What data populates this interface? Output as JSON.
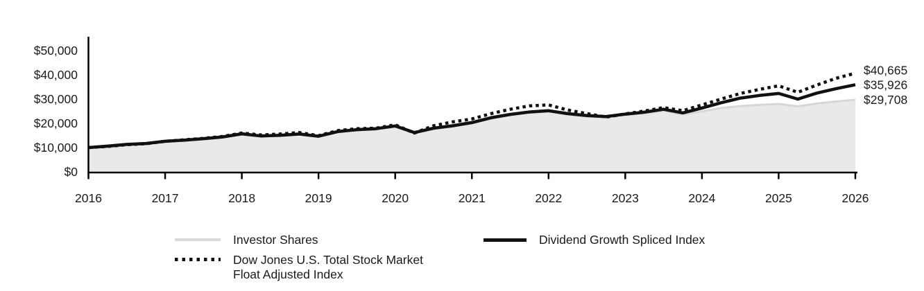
{
  "chart_data": {
    "type": "line",
    "title": "",
    "xlabel": "",
    "ylabel": "",
    "xlim": [
      2016,
      2026
    ],
    "ylim": [
      0,
      50000
    ],
    "grid": false,
    "legend_position": "bottom",
    "x_axis": {
      "tick_labels": [
        "2016",
        "2017",
        "2018",
        "2019",
        "2020",
        "2021",
        "2022",
        "2023",
        "2024",
        "2025",
        "2026"
      ],
      "tick_values": [
        2016,
        2017,
        2018,
        2019,
        2020,
        2021,
        2022,
        2023,
        2024,
        2025,
        2026
      ]
    },
    "y_axis": {
      "tick_labels": [
        "$50,000",
        "$40,000",
        "$30,000",
        "$20,000",
        "$10,000",
        "$0"
      ],
      "tick_values": [
        50000,
        40000,
        30000,
        20000,
        10000,
        0
      ]
    },
    "x": [
      2016,
      2016.25,
      2016.5,
      2016.75,
      2017,
      2017.25,
      2017.5,
      2017.75,
      2018,
      2018.25,
      2018.5,
      2018.75,
      2019,
      2019.25,
      2019.5,
      2019.75,
      2020,
      2020.25,
      2020.5,
      2020.75,
      2021,
      2021.25,
      2021.5,
      2021.75,
      2022,
      2022.25,
      2022.5,
      2022.75,
      2023,
      2023.25,
      2023.5,
      2023.75,
      2024,
      2024.25,
      2024.5,
      2024.75,
      2025,
      2025.25,
      2025.5,
      2025.75,
      2026
    ],
    "series": [
      {
        "name": "Investor Shares",
        "style": "area",
        "color": "#d6d6d6",
        "fill_color": "#e9e9e9",
        "line_width": 3,
        "end_label": "$29,708",
        "end_value": 29708,
        "values": [
          10000,
          10100,
          11000,
          11400,
          12300,
          12800,
          13400,
          14100,
          15300,
          14500,
          14800,
          15300,
          14400,
          16300,
          17100,
          17500,
          18600,
          15900,
          17700,
          18700,
          20000,
          21900,
          23300,
          24300,
          24800,
          23600,
          22800,
          22400,
          23400,
          24100,
          25200,
          23700,
          24900,
          26300,
          27100,
          27600,
          28000,
          27000,
          28200,
          29000,
          29708
        ]
      },
      {
        "name": "Dividend Growth Spliced Index",
        "style": "solid",
        "color": "#111111",
        "line_width": 4.5,
        "end_label": "$35,926",
        "end_value": 35926,
        "values": [
          10000,
          10600,
          11300,
          11700,
          12600,
          13100,
          13700,
          14400,
          15700,
          14800,
          15100,
          15600,
          14700,
          16600,
          17400,
          17800,
          18900,
          16200,
          18000,
          19000,
          20300,
          22300,
          23700,
          24700,
          25200,
          24000,
          23200,
          22800,
          23800,
          24600,
          25800,
          24300,
          26300,
          28500,
          30400,
          31500,
          32300,
          30000,
          32500,
          34300,
          35926
        ]
      },
      {
        "name": "Dow Jones U.S. Total Stock Market Float Adjusted Index",
        "style": "dotted",
        "color": "#111111",
        "line_width": 4.5,
        "end_label": "$40,665",
        "end_value": 40665,
        "values": [
          10000,
          10500,
          11200,
          11600,
          12600,
          13200,
          13800,
          14600,
          16000,
          15200,
          15600,
          16200,
          14900,
          17000,
          17800,
          18000,
          19400,
          16000,
          19000,
          20600,
          21800,
          24000,
          25800,
          27200,
          27600,
          25500,
          24000,
          22600,
          23900,
          25100,
          26500,
          25200,
          27600,
          30000,
          32300,
          34000,
          35500,
          32800,
          35800,
          38600,
          40665
        ]
      }
    ],
    "end_labels": [
      "$40,665",
      "$35,926",
      "$29,708"
    ]
  },
  "legend": {
    "items": [
      {
        "label": "Investor Shares",
        "swatch": "gray-line"
      },
      {
        "label_line1": "Dow Jones U.S. Total Stock Market",
        "label_line2": "Float Adjusted Index",
        "swatch": "dotted-line"
      },
      {
        "label": "Dividend Growth Spliced Index",
        "swatch": "black-line"
      }
    ]
  },
  "colors": {
    "axis": "#000000",
    "text": "#1a1a1a",
    "investor_line": "#d6d6d6",
    "investor_fill": "#e9e9e9",
    "index_line": "#111111",
    "background": "#ffffff"
  }
}
